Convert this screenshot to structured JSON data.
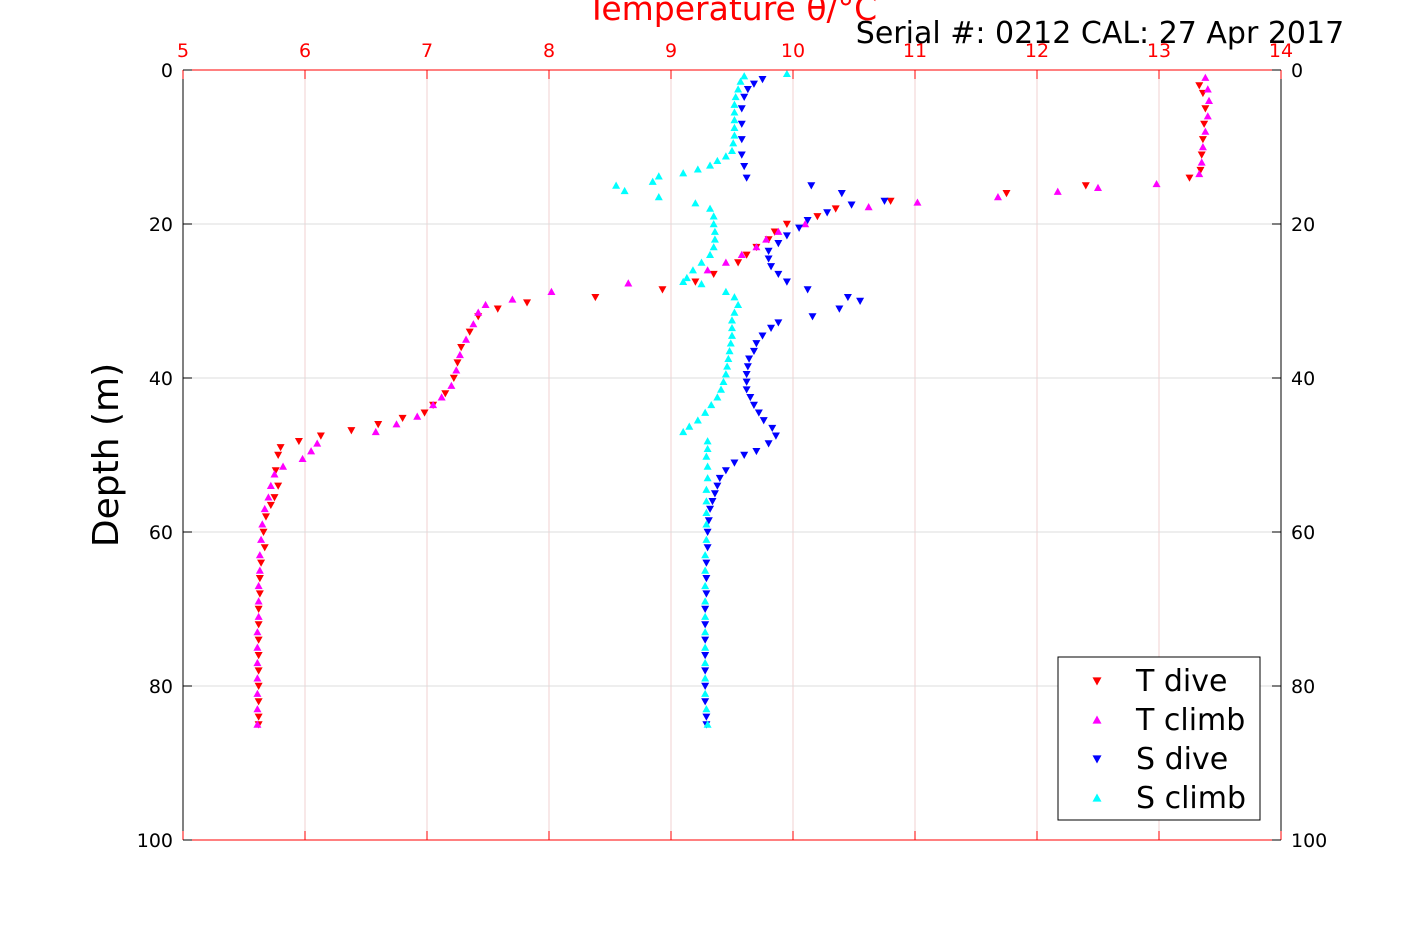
{
  "chart_data": {
    "type": "scatter",
    "title_temperature": "Temperature θ/°C",
    "title_serial": "Serial #: 0212  CAL: 27 Apr 2017",
    "ylabel": "Depth (m)",
    "xlim": [
      5,
      14
    ],
    "ylim": [
      0,
      100
    ],
    "y_reversed": true,
    "x_ticks": [
      "5",
      "6",
      "7",
      "8",
      "9",
      "10",
      "11",
      "12",
      "13",
      "14"
    ],
    "y_ticks": [
      "0",
      "20",
      "40",
      "60",
      "80",
      "100"
    ],
    "x_tick_values": [
      5,
      6,
      7,
      8,
      9,
      10,
      11,
      12,
      13,
      14
    ],
    "y_tick_values": [
      0,
      20,
      40,
      60,
      80,
      100
    ],
    "grid": true,
    "legend_position": "bottom-right",
    "colors": {
      "t_dive": "#ff0000",
      "t_climb": "#ff00ff",
      "s_dive": "#0000ff",
      "s_climb": "#00ffff",
      "top_axis": "#ff0000"
    },
    "series": [
      {
        "name": "T dive",
        "marker": "triangle-down",
        "color": "#ff0000",
        "points": [
          [
            13.33,
            2
          ],
          [
            13.36,
            3
          ],
          [
            13.38,
            5
          ],
          [
            13.37,
            7
          ],
          [
            13.36,
            9
          ],
          [
            13.35,
            11
          ],
          [
            13.34,
            13
          ],
          [
            13.25,
            14
          ],
          [
            12.4,
            15
          ],
          [
            11.75,
            16
          ],
          [
            10.8,
            17
          ],
          [
            10.35,
            18
          ],
          [
            10.2,
            19
          ],
          [
            9.95,
            20
          ],
          [
            9.85,
            21
          ],
          [
            9.8,
            22
          ],
          [
            9.7,
            23
          ],
          [
            9.62,
            24
          ],
          [
            9.55,
            25
          ],
          [
            9.35,
            26.5
          ],
          [
            9.2,
            27.5
          ],
          [
            8.93,
            28.5
          ],
          [
            8.38,
            29.5
          ],
          [
            7.82,
            30.2
          ],
          [
            7.58,
            31.0
          ],
          [
            7.42,
            32
          ],
          [
            7.35,
            34
          ],
          [
            7.28,
            36
          ],
          [
            7.25,
            38
          ],
          [
            7.22,
            40
          ],
          [
            7.15,
            42
          ],
          [
            7.05,
            43.5
          ],
          [
            6.98,
            44.5
          ],
          [
            6.8,
            45.2
          ],
          [
            6.6,
            46
          ],
          [
            6.38,
            46.8
          ],
          [
            6.13,
            47.5
          ],
          [
            5.95,
            48.2
          ],
          [
            5.8,
            49
          ],
          [
            5.78,
            50
          ],
          [
            5.76,
            52
          ],
          [
            5.78,
            54
          ],
          [
            5.75,
            55.5
          ],
          [
            5.72,
            56.5
          ],
          [
            5.68,
            58
          ],
          [
            5.66,
            60
          ],
          [
            5.67,
            62
          ],
          [
            5.64,
            64
          ],
          [
            5.63,
            66
          ],
          [
            5.63,
            68
          ],
          [
            5.62,
            70
          ],
          [
            5.62,
            72
          ],
          [
            5.62,
            74
          ],
          [
            5.62,
            76
          ],
          [
            5.62,
            78
          ],
          [
            5.62,
            80
          ],
          [
            5.62,
            82
          ],
          [
            5.62,
            84
          ],
          [
            5.62,
            85
          ]
        ]
      },
      {
        "name": "T climb",
        "marker": "triangle-up",
        "color": "#ff00ff",
        "points": [
          [
            13.38,
            1
          ],
          [
            13.4,
            2.5
          ],
          [
            13.41,
            4
          ],
          [
            13.4,
            6
          ],
          [
            13.38,
            8
          ],
          [
            13.36,
            10
          ],
          [
            13.35,
            12
          ],
          [
            13.33,
            13.5
          ],
          [
            12.98,
            14.8
          ],
          [
            12.5,
            15.3
          ],
          [
            12.17,
            15.8
          ],
          [
            11.68,
            16.5
          ],
          [
            11.02,
            17.2
          ],
          [
            10.62,
            17.8
          ],
          [
            10.1,
            20
          ],
          [
            9.88,
            21
          ],
          [
            9.78,
            22
          ],
          [
            9.7,
            23
          ],
          [
            9.58,
            24
          ],
          [
            9.45,
            25
          ],
          [
            9.3,
            26
          ],
          [
            8.65,
            27.7
          ],
          [
            8.02,
            28.8
          ],
          [
            7.7,
            29.8
          ],
          [
            7.48,
            30.5
          ],
          [
            7.42,
            31.5
          ],
          [
            7.38,
            33
          ],
          [
            7.32,
            35
          ],
          [
            7.27,
            37
          ],
          [
            7.24,
            39
          ],
          [
            7.2,
            41
          ],
          [
            7.12,
            42.5
          ],
          [
            7.05,
            43.5
          ],
          [
            6.92,
            45
          ],
          [
            6.75,
            46
          ],
          [
            6.58,
            47
          ],
          [
            6.1,
            48.5
          ],
          [
            6.05,
            49.5
          ],
          [
            5.98,
            50.5
          ],
          [
            5.82,
            51.5
          ],
          [
            5.75,
            52.5
          ],
          [
            5.72,
            54
          ],
          [
            5.7,
            55.5
          ],
          [
            5.67,
            57
          ],
          [
            5.65,
            59
          ],
          [
            5.64,
            61
          ],
          [
            5.63,
            63
          ],
          [
            5.63,
            65
          ],
          [
            5.62,
            67
          ],
          [
            5.62,
            69
          ],
          [
            5.62,
            71
          ],
          [
            5.61,
            73
          ],
          [
            5.61,
            75
          ],
          [
            5.61,
            77
          ],
          [
            5.61,
            79
          ],
          [
            5.61,
            81
          ],
          [
            5.61,
            83
          ],
          [
            5.61,
            85
          ]
        ]
      },
      {
        "name": "S dive",
        "marker": "triangle-down",
        "color": "#0000ff",
        "points": [
          [
            9.75,
            1.2
          ],
          [
            9.68,
            1.8
          ],
          [
            9.63,
            2.5
          ],
          [
            9.6,
            3.5
          ],
          [
            9.58,
            5
          ],
          [
            9.58,
            7
          ],
          [
            9.58,
            9
          ],
          [
            9.58,
            11
          ],
          [
            9.6,
            12.5
          ],
          [
            9.62,
            14
          ],
          [
            10.15,
            15
          ],
          [
            10.4,
            16
          ],
          [
            10.48,
            17.5
          ],
          [
            10.75,
            17
          ],
          [
            10.28,
            18.5
          ],
          [
            10.12,
            19.5
          ],
          [
            10.05,
            20.5
          ],
          [
            9.95,
            21.5
          ],
          [
            9.88,
            22.5
          ],
          [
            9.8,
            23.5
          ],
          [
            9.8,
            24.5
          ],
          [
            9.82,
            25.5
          ],
          [
            9.88,
            26.5
          ],
          [
            9.95,
            27.5
          ],
          [
            10.12,
            28.5
          ],
          [
            10.45,
            29.5
          ],
          [
            10.55,
            30
          ],
          [
            10.38,
            31
          ],
          [
            10.16,
            32
          ],
          [
            9.88,
            32.8
          ],
          [
            9.82,
            33.5
          ],
          [
            9.75,
            34.5
          ],
          [
            9.7,
            35.5
          ],
          [
            9.68,
            36.5
          ],
          [
            9.64,
            37.5
          ],
          [
            9.63,
            38.5
          ],
          [
            9.62,
            39.5
          ],
          [
            9.62,
            40.5
          ],
          [
            9.62,
            41.5
          ],
          [
            9.65,
            42.5
          ],
          [
            9.68,
            43.5
          ],
          [
            9.72,
            44.5
          ],
          [
            9.76,
            45.5
          ],
          [
            9.83,
            46.5
          ],
          [
            9.86,
            47.5
          ],
          [
            9.8,
            48.5
          ],
          [
            9.7,
            49.5
          ],
          [
            9.6,
            50
          ],
          [
            9.52,
            51
          ],
          [
            9.45,
            52
          ],
          [
            9.4,
            53
          ],
          [
            9.38,
            54
          ],
          [
            9.36,
            55
          ],
          [
            9.34,
            56
          ],
          [
            9.32,
            57
          ],
          [
            9.31,
            58.5
          ],
          [
            9.3,
            60
          ],
          [
            9.3,
            62
          ],
          [
            9.29,
            64
          ],
          [
            9.29,
            66
          ],
          [
            9.29,
            68
          ],
          [
            9.28,
            70
          ],
          [
            9.28,
            72
          ],
          [
            9.28,
            74
          ],
          [
            9.28,
            76
          ],
          [
            9.28,
            78
          ],
          [
            9.28,
            80
          ],
          [
            9.28,
            82
          ],
          [
            9.29,
            84
          ],
          [
            9.29,
            85
          ]
        ]
      },
      {
        "name": "S climb",
        "marker": "triangle-up",
        "color": "#00ffff",
        "points": [
          [
            9.95,
            0.5
          ],
          [
            9.6,
            0.8
          ],
          [
            9.57,
            1.5
          ],
          [
            9.55,
            2.5
          ],
          [
            9.53,
            3.5
          ],
          [
            9.52,
            4.5
          ],
          [
            9.52,
            5.5
          ],
          [
            9.52,
            6.5
          ],
          [
            9.52,
            7.5
          ],
          [
            9.52,
            8.5
          ],
          [
            9.51,
            9.5
          ],
          [
            9.5,
            10.5
          ],
          [
            9.45,
            11.2
          ],
          [
            9.38,
            11.8
          ],
          [
            9.32,
            12.4
          ],
          [
            9.22,
            12.9
          ],
          [
            9.1,
            13.4
          ],
          [
            8.9,
            13.8
          ],
          [
            8.85,
            14.5
          ],
          [
            8.55,
            15
          ],
          [
            8.62,
            15.7
          ],
          [
            8.9,
            16.5
          ],
          [
            9.2,
            17.3
          ],
          [
            9.32,
            18
          ],
          [
            9.35,
            19
          ],
          [
            9.35,
            20
          ],
          [
            9.36,
            21
          ],
          [
            9.36,
            22
          ],
          [
            9.35,
            23
          ],
          [
            9.32,
            24
          ],
          [
            9.25,
            25
          ],
          [
            9.18,
            26
          ],
          [
            9.13,
            27
          ],
          [
            9.1,
            27.5
          ],
          [
            9.25,
            27.8
          ],
          [
            9.45,
            28.8
          ],
          [
            9.52,
            29.5
          ],
          [
            9.55,
            30.5
          ],
          [
            9.52,
            31.5
          ],
          [
            9.5,
            32.5
          ],
          [
            9.5,
            33.5
          ],
          [
            9.5,
            34.5
          ],
          [
            9.49,
            35.5
          ],
          [
            9.48,
            36.5
          ],
          [
            9.47,
            37.5
          ],
          [
            9.46,
            38.5
          ],
          [
            9.45,
            39.5
          ],
          [
            9.43,
            40.5
          ],
          [
            9.41,
            41.5
          ],
          [
            9.38,
            42.5
          ],
          [
            9.33,
            43.5
          ],
          [
            9.28,
            44.5
          ],
          [
            9.22,
            45.5
          ],
          [
            9.15,
            46.3
          ],
          [
            9.1,
            47
          ],
          [
            9.3,
            48.2
          ],
          [
            9.3,
            49.2
          ],
          [
            9.29,
            50.2
          ],
          [
            9.3,
            51.5
          ],
          [
            9.3,
            53
          ],
          [
            9.29,
            54.5
          ],
          [
            9.29,
            56
          ],
          [
            9.29,
            57.5
          ],
          [
            9.29,
            59
          ],
          [
            9.29,
            61
          ],
          [
            9.28,
            63
          ],
          [
            9.28,
            65
          ],
          [
            9.28,
            67
          ],
          [
            9.28,
            69
          ],
          [
            9.28,
            71
          ],
          [
            9.28,
            73
          ],
          [
            9.28,
            75
          ],
          [
            9.28,
            77
          ],
          [
            9.28,
            79
          ],
          [
            9.28,
            81
          ],
          [
            9.29,
            83
          ],
          [
            9.3,
            85
          ]
        ]
      }
    ]
  }
}
